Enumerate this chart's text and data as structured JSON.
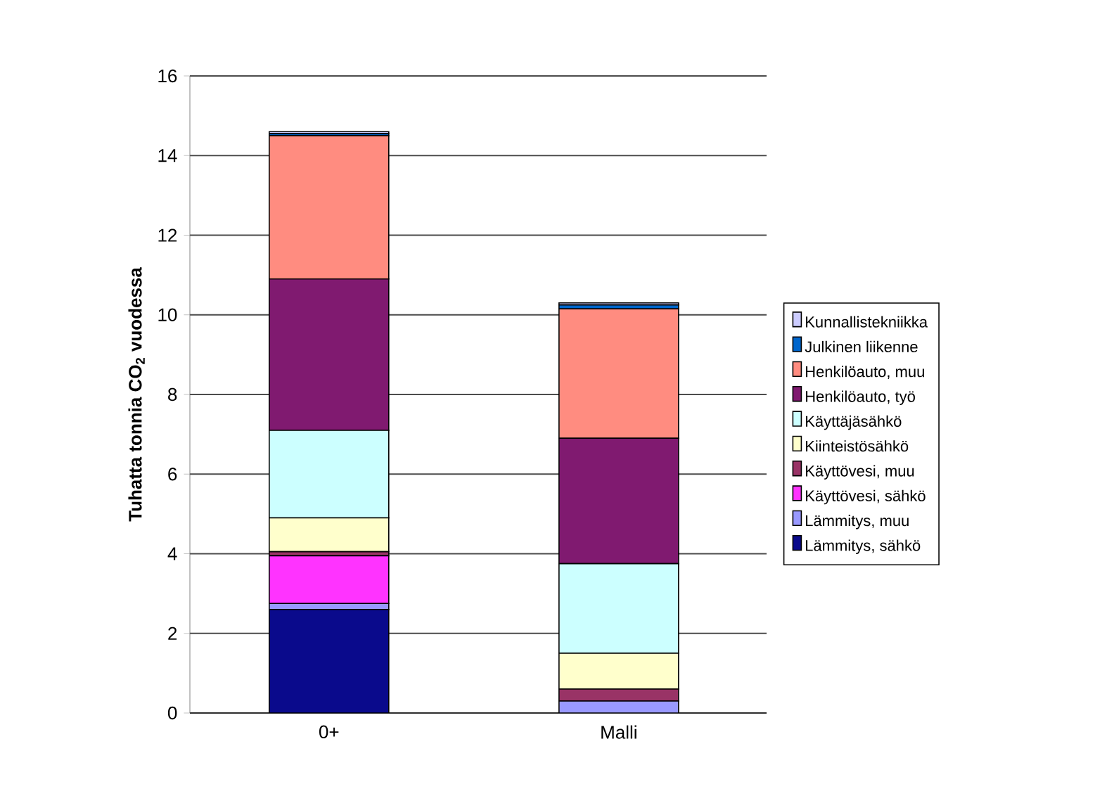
{
  "chart_data": {
    "type": "bar",
    "stacked": true,
    "ylabel": "Tuhatta tonnia CO$_{2}$ vuodessa",
    "categories": [
      "0+",
      "Malli"
    ],
    "series": [
      {
        "name": "Lämmitys, sähkö",
        "color": "#0a0a8c",
        "values": [
          2.6,
          0
        ]
      },
      {
        "name": "Lämmitys, muu",
        "color": "#9999ff",
        "values": [
          0.15,
          0.3
        ]
      },
      {
        "name": "Käyttövesi, sähkö",
        "color": "#ff33ff",
        "values": [
          1.2,
          0
        ]
      },
      {
        "name": "Käyttövesi, muu",
        "color": "#993366",
        "values": [
          0.1,
          0.3
        ]
      },
      {
        "name": "Kiinteistösähkö",
        "color": "#ffffcc",
        "values": [
          0.85,
          0.9
        ]
      },
      {
        "name": "Käyttäjäsähkö",
        "color": "#ccffff",
        "values": [
          2.2,
          2.25
        ]
      },
      {
        "name": "Henkilöauto, työ",
        "color": "#801a70",
        "values": [
          3.8,
          3.15
        ]
      },
      {
        "name": "Henkilöauto, muu",
        "color": "#ff8c80",
        "values": [
          3.6,
          3.25
        ]
      },
      {
        "name": "Julkinen liikenne",
        "color": "#0066cc",
        "values": [
          0.05,
          0.1
        ]
      },
      {
        "name": "Kunnallistekniikka",
        "color": "#ccccff",
        "values": [
          0.05,
          0.05
        ]
      }
    ],
    "ylim": [
      0,
      16
    ],
    "yticks": [
      0,
      2,
      4,
      6,
      8,
      10,
      12,
      14,
      16
    ],
    "grid": "y",
    "legend": "right"
  }
}
